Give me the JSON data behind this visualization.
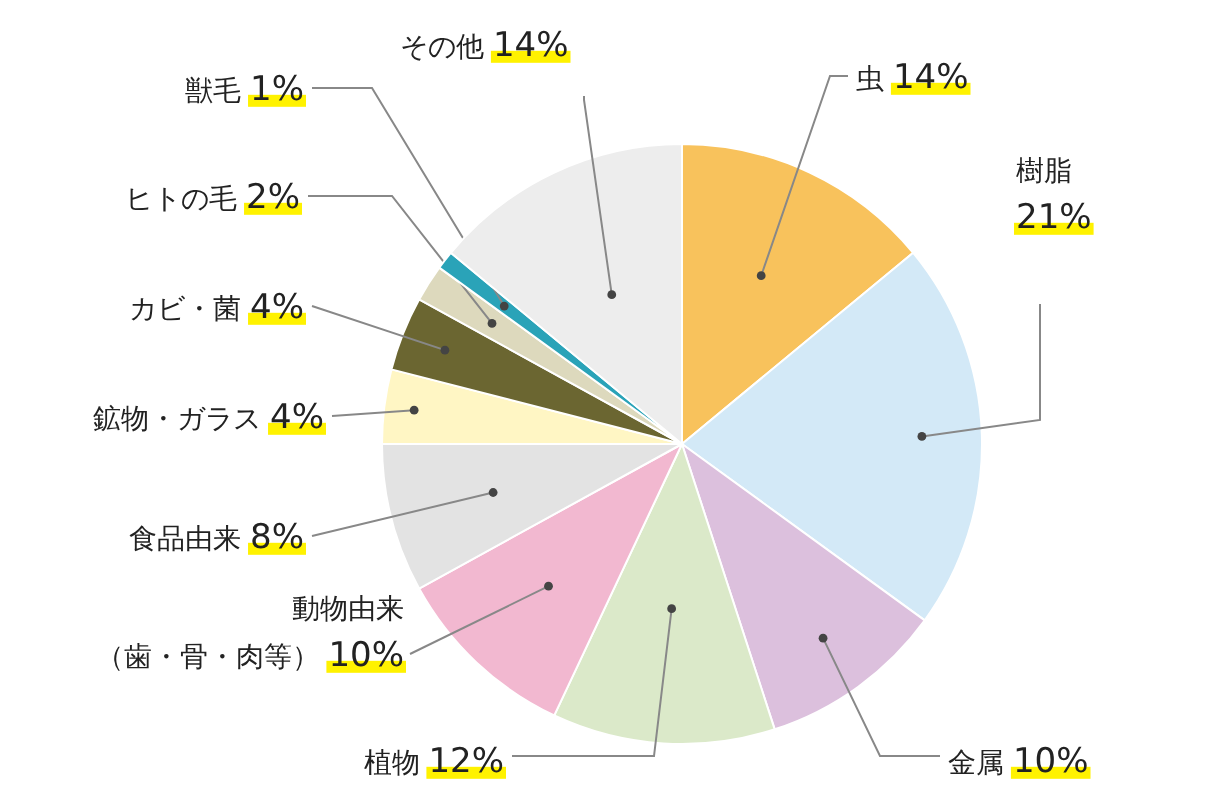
{
  "chart_data": {
    "type": "pie",
    "categories": [
      "虫",
      "樹脂",
      "金属",
      "植物",
      "動物由来（歯・骨・肉等）",
      "食品由来",
      "鉱物・ガラス",
      "カビ・菌",
      "ヒトの毛",
      "獣毛",
      "その他"
    ],
    "values": [
      14,
      21,
      10,
      12,
      10,
      8,
      4,
      4,
      2,
      1,
      14
    ],
    "value_labels": [
      "14%",
      "21%",
      "10%",
      "12%",
      "10%",
      "8%",
      "4%",
      "4%",
      "2%",
      "1%",
      "14%"
    ],
    "colors": [
      "#f8c25c",
      "#d3e9f7",
      "#dcc0dd",
      "#dbe9c9",
      "#f2b8d0",
      "#e3e3e3",
      "#fff6c4",
      "#6b6631",
      "#ddd9bd",
      "#2aa3b8",
      "#ededed"
    ]
  }
}
